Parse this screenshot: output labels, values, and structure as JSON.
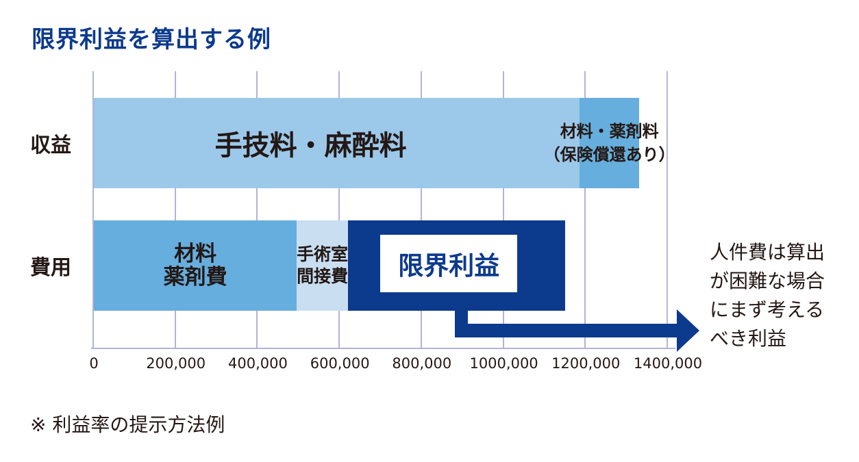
{
  "page": {
    "title": "限界利益を算出する例",
    "footnote": "※ 利益率の提示方法例"
  },
  "colors": {
    "navy": "#0c3a8c",
    "light_blue": "#9cc8ea",
    "medium_blue": "#66aedd",
    "pale_blue": "#c9def1",
    "gridline": "#b3b3d6",
    "text": "#231815",
    "bg": "#ffffff"
  },
  "chart_data": {
    "type": "bar",
    "orientation": "horizontal-stacked",
    "title": "限界利益を算出する例",
    "xlabel": "",
    "ylabel": "",
    "xlim": [
      0,
      1400000
    ],
    "grid": "vertical gridlines, bottom axis line only",
    "x_ticks": [
      {
        "value": 0,
        "label": "0"
      },
      {
        "value": 200000,
        "label": "200,000"
      },
      {
        "value": 400000,
        "label": "400,000"
      },
      {
        "value": 600000,
        "label": "600,000"
      },
      {
        "value": 800000,
        "label": "800,000"
      },
      {
        "value": 1000000,
        "label": "1000,000"
      },
      {
        "value": 1200000,
        "label": "1200,000"
      },
      {
        "value": 1400000,
        "label": "1400,000"
      }
    ],
    "rows": [
      {
        "id": "revenue",
        "name": "収益",
        "segments": [
          {
            "label": "手技料・麻酔料",
            "value": 1185000,
            "color": "light_blue"
          },
          {
            "label": "材料・薬剤料\n（保険償還あり）",
            "value": 145000,
            "color": "medium_blue"
          }
        ]
      },
      {
        "id": "cost",
        "name": "費用",
        "segments": [
          {
            "label": "材料\n薬剤費",
            "value": 495000,
            "color": "medium_blue"
          },
          {
            "label": "手術室\n間接費",
            "value": 125000,
            "color": "pale_blue"
          }
        ]
      }
    ],
    "overlay_box": {
      "label": "限界利益",
      "row": "cost",
      "from": 620000,
      "to": 1150000
    },
    "annotation": "人件費は算出\nが困難な場合\nにまず考える\nべき利益"
  }
}
